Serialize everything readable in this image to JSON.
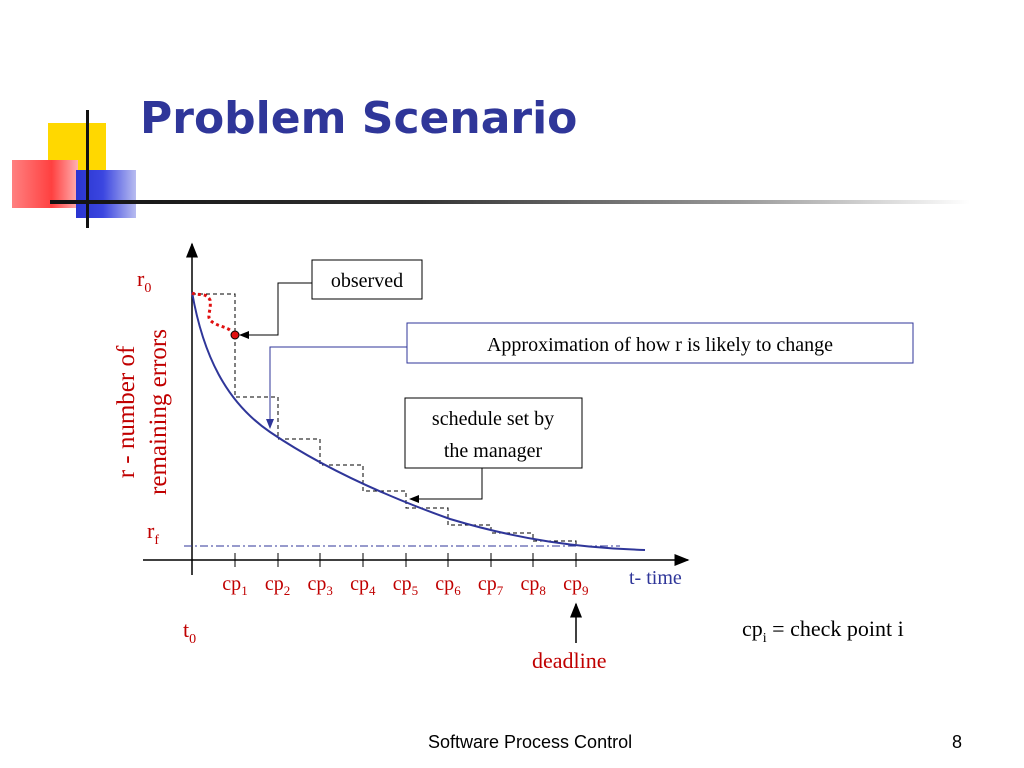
{
  "slide": {
    "title": "Problem Scenario",
    "footer_text": "Software Process Control",
    "page_number": "8"
  },
  "diagram": {
    "y_axis_top_label": {
      "base": "r",
      "sub": "0"
    },
    "y_axis_bottom_label": {
      "base": "r",
      "sub": "f"
    },
    "y_axis_title_line1": "r - number of",
    "y_axis_title_line2": "remaining errors",
    "x_axis_label": "t- time",
    "origin_label": {
      "base": "t",
      "sub": "0"
    },
    "checkpoint_base": "cp",
    "checkpoints": [
      "1",
      "2",
      "3",
      "4",
      "5",
      "6",
      "7",
      "8",
      "9"
    ],
    "deadline_label": "deadline",
    "callout_observed": "observed",
    "callout_approximation": "Approximation of how r is likely to change",
    "callout_schedule_line1": "schedule set by",
    "callout_schedule_line2": "the manager",
    "legend": {
      "base": "cp",
      "sub": "i",
      "rest": " = check point i"
    },
    "colors": {
      "title": "#2f3699",
      "curve": "#2f3699",
      "label_red": "#c00000",
      "axis_blue_label": "#2f3699",
      "observed_dots": "#e01010"
    }
  }
}
